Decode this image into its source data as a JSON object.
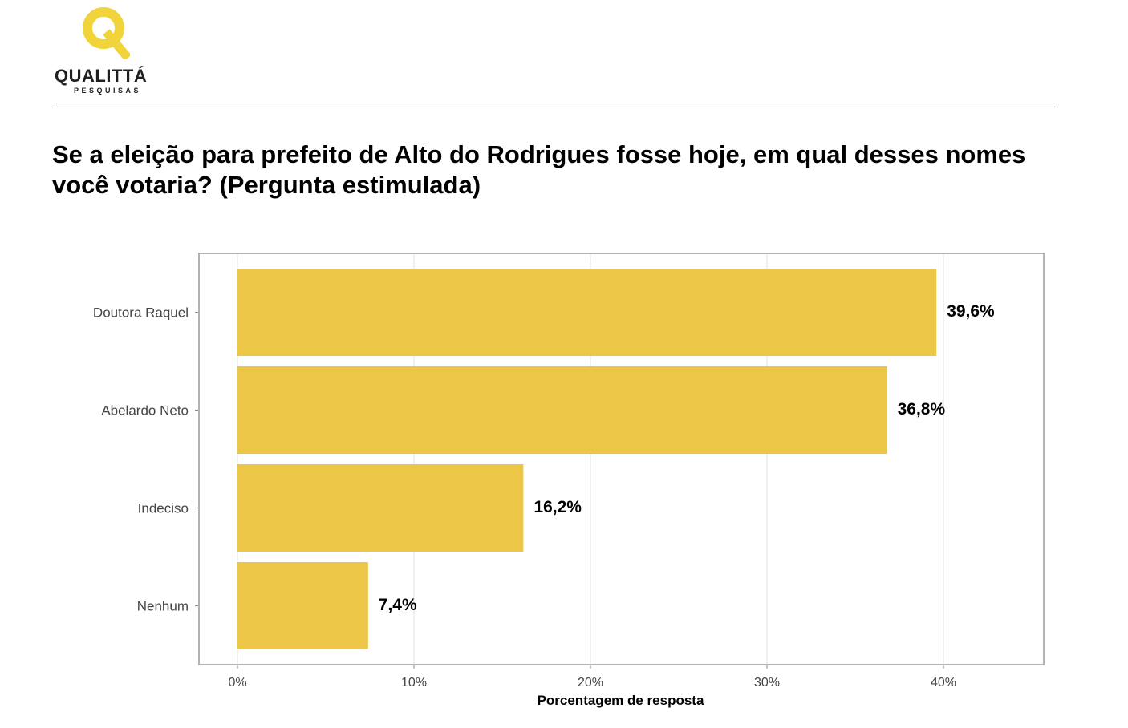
{
  "logo": {
    "name": "QUALITTÁ",
    "subtitle": "PESQUISAS",
    "icon": "q-logo-icon",
    "color": "#F0D43A"
  },
  "title": "Se a eleição para prefeito de Alto do Rodrigues fosse hoje, em qual desses nomes você votaria? (Pergunta estimulada)",
  "chart_data": {
    "type": "bar",
    "orientation": "horizontal",
    "categories": [
      "Doutora Raquel",
      "Abelardo Neto",
      "Indeciso",
      "Nenhum"
    ],
    "values": [
      39.6,
      36.8,
      16.2,
      7.4
    ],
    "data_labels": [
      "39,6%",
      "36,8%",
      "16,2%",
      "7,4%"
    ],
    "xlabel": "Porcentagem de resposta",
    "ylabel": "",
    "xlim": [
      0,
      45.5
    ],
    "x_ticks": [
      0,
      10,
      20,
      30,
      40
    ],
    "x_tick_labels": [
      "0%",
      "10%",
      "20%",
      "30%",
      "40%"
    ],
    "grid": "vertical",
    "bar_color": "#ECC646",
    "frame_color": "#B3B3B3",
    "grid_color": "#E2E2E2"
  }
}
